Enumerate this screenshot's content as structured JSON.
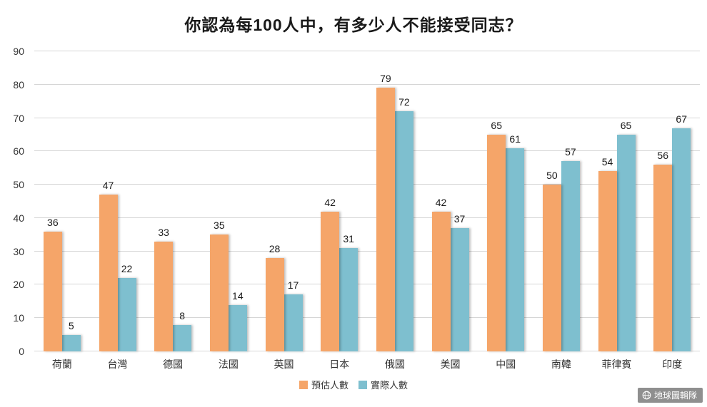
{
  "chart_data": {
    "type": "bar",
    "title": "你認為每100人中，有多少人不能接受同志？",
    "categories": [
      "荷蘭",
      "台灣",
      "德國",
      "法國",
      "英國",
      "日本",
      "俄國",
      "美國",
      "中國",
      "南韓",
      "菲律賓",
      "印度"
    ],
    "series": [
      {
        "name": "預估人數",
        "slug": "estimated",
        "color": "#F5A569",
        "values": [
          36,
          47,
          33,
          35,
          28,
          42,
          79,
          42,
          65,
          50,
          54,
          56
        ]
      },
      {
        "name": "實際人數",
        "slug": "actual",
        "color": "#7EBFCF",
        "values": [
          5,
          22,
          8,
          14,
          17,
          31,
          72,
          37,
          61,
          57,
          65,
          67
        ]
      }
    ],
    "ylim": [
      0,
      90
    ],
    "ytick_interval": 10,
    "grid": true,
    "legend_position": "bottom"
  },
  "watermark": {
    "label": "地球圖輯隊",
    "icon": "globe-icon"
  }
}
